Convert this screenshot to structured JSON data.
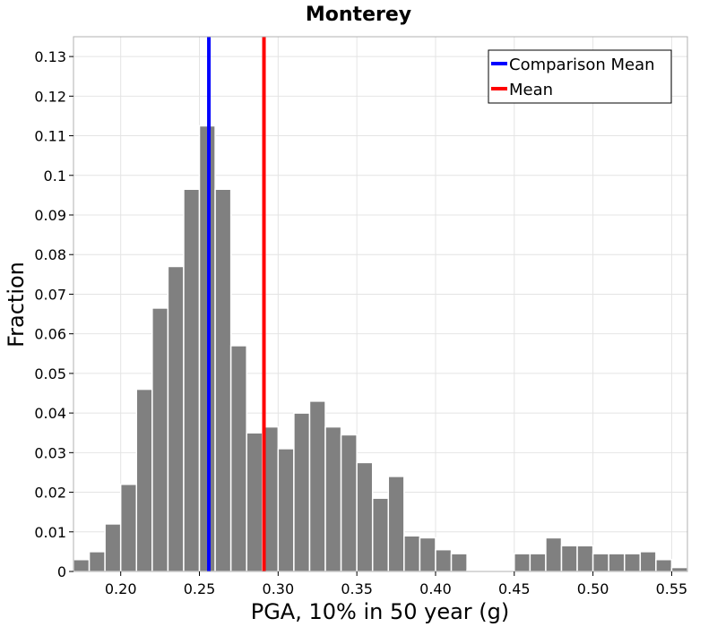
{
  "chart_data": {
    "type": "bar",
    "title": "Monterey",
    "xlabel": "PGA, 10% in 50 year (g)",
    "ylabel": "Fraction",
    "xlim": [
      0.17,
      0.56
    ],
    "ylim": [
      0,
      0.135
    ],
    "grid": true,
    "legend_position": "top-right",
    "bar_color": "#808080",
    "bin_width": 0.01,
    "x": [
      0.175,
      0.185,
      0.195,
      0.205,
      0.215,
      0.225,
      0.235,
      0.245,
      0.255,
      0.265,
      0.275,
      0.285,
      0.295,
      0.305,
      0.315,
      0.325,
      0.335,
      0.345,
      0.355,
      0.365,
      0.375,
      0.385,
      0.395,
      0.405,
      0.415,
      0.425,
      0.435,
      0.445,
      0.455,
      0.465,
      0.475,
      0.485,
      0.495,
      0.505,
      0.515,
      0.525,
      0.535,
      0.545,
      0.555
    ],
    "values": [
      0.003,
      0.005,
      0.012,
      0.022,
      0.046,
      0.0665,
      0.077,
      0.0965,
      0.1125,
      0.0965,
      0.057,
      0.035,
      0.0365,
      0.031,
      0.04,
      0.043,
      0.0365,
      0.0345,
      0.0275,
      0.0185,
      0.024,
      0.009,
      0.0085,
      0.0055,
      0.0045,
      0.0003,
      0.0002,
      0.0002,
      0.0045,
      0.0045,
      0.0085,
      0.0065,
      0.0065,
      0.0045,
      0.0045,
      0.0045,
      0.005,
      0.003,
      0.001
    ],
    "x_ticks": [
      0.2,
      0.25,
      0.3,
      0.35,
      0.4,
      0.45,
      0.5,
      0.55
    ],
    "x_tick_labels": [
      "0.20",
      "0.25",
      "0.30",
      "0.35",
      "0.40",
      "0.45",
      "0.50",
      "0.55"
    ],
    "y_ticks": [
      0,
      0.01,
      0.02,
      0.03,
      0.04,
      0.05,
      0.06,
      0.07,
      0.08,
      0.09,
      0.1,
      0.11,
      0.12,
      0.13
    ],
    "y_tick_labels": [
      "0",
      "0.01",
      "0.02",
      "0.03",
      "0.04",
      "0.05",
      "0.06",
      "0.07",
      "0.08",
      "0.09",
      "0.1",
      "0.11",
      "0.12",
      "0.13"
    ],
    "vlines": [
      {
        "name": "Comparison Mean",
        "x": 0.256,
        "color": "#0000ff"
      },
      {
        "name": "Mean",
        "x": 0.291,
        "color": "#ff0000"
      }
    ]
  }
}
